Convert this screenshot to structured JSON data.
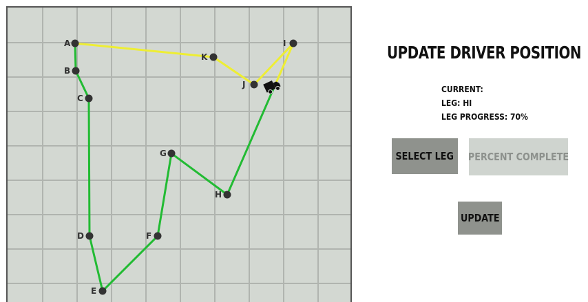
{
  "title": "UPDATE DRIVER POSITION",
  "status": {
    "current_label": "CURRENT:",
    "leg_label": "LEG: HI",
    "progress_label": "LEG PROGRESS: 70%"
  },
  "buttons": {
    "select_leg": "SELECT LEG",
    "percent_complete": "PERCENT COMPLETE",
    "update": "UPDATE"
  },
  "colors": {
    "map_background": "#d3d8d2",
    "grid": "#b0b4af",
    "completed_route": "#22bb33",
    "remaining_route": "#eeee33",
    "node": "#333333"
  },
  "driver_icon": "truck-icon",
  "route": {
    "nodes": [
      "A",
      "B",
      "C",
      "D",
      "E",
      "F",
      "G",
      "H",
      "I",
      "J",
      "K"
    ],
    "completed_path": [
      "A",
      "B",
      "C",
      "D",
      "E",
      "F",
      "G",
      "H"
    ],
    "remaining_path": [
      "I",
      "J",
      "K",
      "A"
    ],
    "current_leg": "HI",
    "leg_progress": 0.7
  }
}
